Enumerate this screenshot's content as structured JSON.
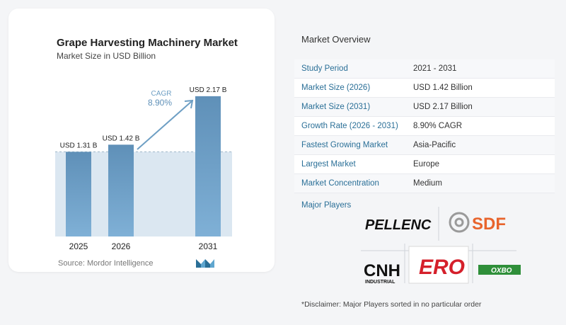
{
  "chart_data": {
    "type": "bar",
    "title": "Grape Harvesting Machinery Market",
    "subtitle": "Market Size in USD Billion",
    "categories": [
      "2025",
      "2026",
      "2031"
    ],
    "values": [
      1.31,
      1.42,
      2.17
    ],
    "data_labels": [
      "USD 1.31 B",
      "USD 1.42 B",
      "USD 2.17 B"
    ],
    "cagr_label": "CAGR",
    "cagr_value": "8.90%",
    "ylim": [
      0,
      2.3
    ],
    "grid": false,
    "colors": {
      "bar": "#5f90b8",
      "bar_light": "#7fb0d6",
      "band": "#dbe7f1",
      "arrow": "#6e9fc4"
    }
  },
  "source": "Source: Mordor Intelligence",
  "overview": {
    "title": "Market Overview",
    "rows": [
      {
        "label": "Study Period",
        "value": "2021 - 2031"
      },
      {
        "label": "Market Size (2026)",
        "value": "USD 1.42 Billion"
      },
      {
        "label": "Market Size (2031)",
        "value": "USD 2.17 Billion"
      },
      {
        "label": "Growth Rate (2026 - 2031)",
        "value": "8.90% CAGR"
      },
      {
        "label": "Fastest Growing Market",
        "value": "Asia-Pacific"
      },
      {
        "label": "Largest Market",
        "value": "Europe"
      },
      {
        "label": "Market Concentration",
        "value": "Medium"
      }
    ]
  },
  "players": {
    "label": "Major Players",
    "logos": [
      "PELLENC",
      "SDF",
      "CNH",
      "INDUSTRIAL",
      "ERO",
      "OXBO"
    ]
  },
  "disclaimer": "*Disclaimer: Major Players sorted in no particular order"
}
